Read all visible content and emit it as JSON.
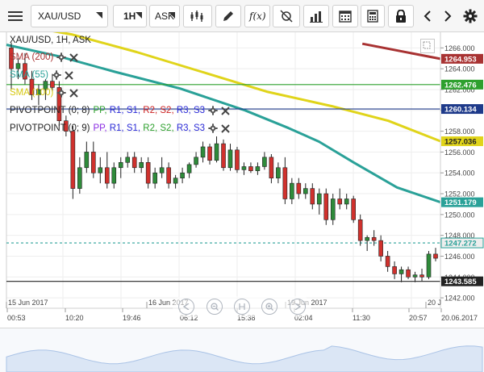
{
  "toolbar": {
    "symbol": "XAU/USD",
    "timeframe": "1H",
    "price_type": "ASK",
    "icons": [
      "menu-icon",
      "chart-type-icon",
      "pencil-icon",
      "function-icon",
      "crosshair-icon",
      "volume-bars-icon",
      "calendar-icon",
      "calculator-icon",
      "lock-icon",
      "chevron-left-icon",
      "chevron-right-icon",
      "settings-gear-icon"
    ]
  },
  "chart_header": {
    "title": "XAU/USD, 1H, ASK"
  },
  "indicators": [
    {
      "label": "SMA (200)",
      "color": "#a83232"
    },
    {
      "label": "SMA (55)",
      "color": "#2aa198"
    },
    {
      "label": "SMA (100)",
      "color": "#e0d41a"
    },
    {
      "prefix": "PIVOTPOINT (0; 8)",
      "parts": [
        "PP",
        "R1",
        "S1",
        "R2",
        "S2",
        "R3",
        "S3"
      ],
      "colors": [
        "#2ea02e",
        "#2a2ad6",
        "#2a2ad6",
        "#cc2222",
        "#cc2222",
        "#2a2ad6",
        "#2a2ad6"
      ]
    },
    {
      "prefix": "PIVOTPOINT (0; 9)",
      "parts": [
        "PP",
        "R1",
        "S1",
        "R2",
        "S2",
        "R3",
        "S3"
      ],
      "colors": [
        "#8a2be2",
        "#2a2ad6",
        "#2a2ad6",
        "#2ea02e",
        "#2ea02e",
        "#2a2ad6",
        "#2a2ad6"
      ]
    }
  ],
  "price_badges": [
    {
      "value": "1264.953",
      "bg": "#a83232",
      "fg": "#ffffff",
      "price": 1264.953
    },
    {
      "value": "1262.476",
      "bg": "#2ea02e",
      "fg": "#ffffff",
      "price": 1262.476
    },
    {
      "value": "1260.134",
      "bg": "#1e3a8a",
      "fg": "#ffffff",
      "price": 1260.134
    },
    {
      "value": "1257.036",
      "bg": "#e0d41a",
      "fg": "#222222",
      "price": 1257.036
    },
    {
      "value": "1251.179",
      "bg": "#2aa198",
      "fg": "#ffffff",
      "price": 1251.179
    },
    {
      "value": "1247.272",
      "bg": "#eeeeee",
      "fg": "#2aa198",
      "price": 1247.272
    },
    {
      "value": "1243.585",
      "bg": "#222222",
      "fg": "#ffffff",
      "price": 1243.585
    }
  ],
  "chart_data": {
    "type": "candlestick",
    "title": "XAU/USD, 1H, ASK",
    "ylim": [
      1241,
      1267.5
    ],
    "y_ticks": [
      1242,
      1244,
      1246,
      1248,
      1250,
      1252,
      1254,
      1256,
      1258,
      1260,
      1262,
      1264,
      1266
    ],
    "date_labels": [
      "15 Jun 2017",
      "16 Jun 2017",
      "19 Jun 2017",
      "20 J"
    ],
    "time_labels": [
      "00:53",
      "10:20",
      "19:46",
      "06:12",
      "15:38",
      "02:04",
      "11:30",
      "20:57",
      "20.06.2017"
    ],
    "candles": [
      [
        1266.0,
        1266.5,
        1262.0,
        1264.0
      ],
      [
        1264.0,
        1265.0,
        1263.0,
        1264.5
      ],
      [
        1264.5,
        1265.5,
        1262.5,
        1263.0
      ],
      [
        1263.0,
        1263.8,
        1261.0,
        1261.5
      ],
      [
        1261.5,
        1262.5,
        1260.5,
        1262.0
      ],
      [
        1262.0,
        1263.0,
        1261.0,
        1262.8
      ],
      [
        1262.8,
        1263.5,
        1261.8,
        1262.2
      ],
      [
        1262.2,
        1262.8,
        1258.5,
        1259.0
      ],
      [
        1259.0,
        1259.5,
        1257.5,
        1258.0
      ],
      [
        1258.0,
        1258.5,
        1251.5,
        1252.5
      ],
      [
        1252.5,
        1255.5,
        1252.0,
        1254.5
      ],
      [
        1254.5,
        1257.0,
        1254.0,
        1256.0
      ],
      [
        1256.0,
        1257.0,
        1253.5,
        1254.0
      ],
      [
        1254.0,
        1255.5,
        1253.0,
        1254.5
      ],
      [
        1254.5,
        1256.0,
        1252.5,
        1253.0
      ],
      [
        1253.0,
        1255.0,
        1252.5,
        1254.5
      ],
      [
        1254.5,
        1255.5,
        1253.5,
        1255.0
      ],
      [
        1255.0,
        1256.0,
        1254.5,
        1255.5
      ],
      [
        1255.5,
        1256.0,
        1254.0,
        1254.5
      ],
      [
        1254.5,
        1255.5,
        1254.0,
        1255.0
      ],
      [
        1255.0,
        1255.5,
        1252.5,
        1253.0
      ],
      [
        1253.0,
        1254.5,
        1252.5,
        1254.0
      ],
      [
        1254.0,
        1255.5,
        1253.5,
        1254.5
      ],
      [
        1254.5,
        1255.0,
        1252.5,
        1253.0
      ],
      [
        1253.0,
        1253.8,
        1252.5,
        1253.5
      ],
      [
        1253.5,
        1254.5,
        1253.0,
        1254.0
      ],
      [
        1254.0,
        1255.0,
        1253.5,
        1254.8
      ],
      [
        1254.8,
        1256.0,
        1254.5,
        1255.5
      ],
      [
        1255.5,
        1257.0,
        1255.0,
        1256.5
      ],
      [
        1256.5,
        1256.8,
        1254.8,
        1255.2
      ],
      [
        1255.2,
        1257.5,
        1255.0,
        1256.8
      ],
      [
        1256.8,
        1257.2,
        1254.2,
        1254.5
      ],
      [
        1254.5,
        1256.8,
        1254.2,
        1256.2
      ],
      [
        1256.2,
        1256.5,
        1254.0,
        1254.3
      ],
      [
        1254.3,
        1255.0,
        1253.8,
        1254.6
      ],
      [
        1254.6,
        1255.0,
        1254.0,
        1254.2
      ],
      [
        1254.2,
        1255.0,
        1253.8,
        1254.6
      ],
      [
        1254.6,
        1256.0,
        1254.3,
        1255.5
      ],
      [
        1255.5,
        1255.8,
        1253.0,
        1253.5
      ],
      [
        1253.5,
        1255.0,
        1253.0,
        1254.5
      ],
      [
        1254.5,
        1255.5,
        1251.0,
        1251.5
      ],
      [
        1251.5,
        1253.5,
        1251.0,
        1253.0
      ],
      [
        1253.0,
        1253.5,
        1251.5,
        1252.0
      ],
      [
        1252.0,
        1253.0,
        1251.5,
        1252.5
      ],
      [
        1252.5,
        1253.0,
        1250.5,
        1251.0
      ],
      [
        1251.0,
        1252.5,
        1250.0,
        1252.0
      ],
      [
        1252.0,
        1252.5,
        1249.0,
        1249.5
      ],
      [
        1249.5,
        1252.0,
        1249.0,
        1251.5
      ],
      [
        1251.5,
        1252.5,
        1250.5,
        1251.0
      ],
      [
        1251.0,
        1252.0,
        1250.5,
        1251.5
      ],
      [
        1251.5,
        1251.8,
        1249.2,
        1249.5
      ],
      [
        1249.5,
        1250.0,
        1247.0,
        1247.5
      ],
      [
        1247.5,
        1248.0,
        1246.5,
        1247.8
      ],
      [
        1247.8,
        1248.5,
        1247.0,
        1247.5
      ],
      [
        1247.5,
        1248.0,
        1245.5,
        1246.0
      ],
      [
        1246.0,
        1246.5,
        1244.5,
        1245.0
      ],
      [
        1245.0,
        1245.5,
        1243.8,
        1244.3
      ],
      [
        1244.3,
        1245.0,
        1243.5,
        1244.7
      ],
      [
        1244.7,
        1245.0,
        1243.8,
        1244.0
      ],
      [
        1244.0,
        1244.5,
        1243.5,
        1244.2
      ],
      [
        1244.2,
        1244.8,
        1243.6,
        1244.0
      ],
      [
        1244.0,
        1246.5,
        1243.8,
        1246.2
      ],
      [
        1246.2,
        1246.8,
        1245.5,
        1245.8
      ]
    ],
    "sma_lines": [
      {
        "name": "SMA (200)",
        "color": "#a83232",
        "points": [
          [
            0.82,
            1266.4
          ],
          [
            1.0,
            1264.95
          ]
        ]
      },
      {
        "name": "SMA (55)",
        "color": "#2aa198",
        "points": [
          [
            0.0,
            1266.3
          ],
          [
            0.12,
            1265.2
          ],
          [
            0.25,
            1263.7
          ],
          [
            0.4,
            1262.1
          ],
          [
            0.55,
            1260.0
          ],
          [
            0.65,
            1258.3
          ],
          [
            0.72,
            1257.0
          ],
          [
            0.8,
            1255.0
          ],
          [
            0.9,
            1252.6
          ],
          [
            1.0,
            1251.18
          ]
        ]
      },
      {
        "name": "SMA (100)",
        "color": "#e0d41a",
        "points": [
          [
            0.0,
            1268.4
          ],
          [
            0.15,
            1267.3
          ],
          [
            0.3,
            1265.6
          ],
          [
            0.45,
            1263.7
          ],
          [
            0.6,
            1261.8
          ],
          [
            0.75,
            1260.4
          ],
          [
            0.88,
            1259.0
          ],
          [
            1.0,
            1257.04
          ]
        ]
      }
    ],
    "pivot_lines": [
      {
        "color": "#2ea02e",
        "price": 1262.476,
        "dashed": false
      },
      {
        "color": "#1e3a8a",
        "price": 1260.134,
        "dashed": false
      },
      {
        "color": "#2aa198",
        "price": 1247.272,
        "dashed": true
      },
      {
        "color": "#222222",
        "price": 1243.585,
        "dashed": false
      }
    ]
  }
}
